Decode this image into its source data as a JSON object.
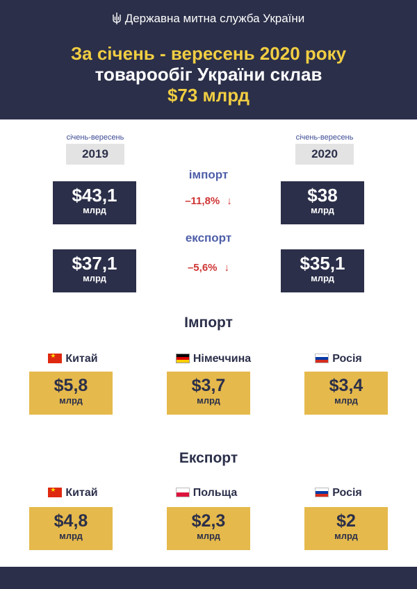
{
  "header": {
    "agency": "Державна митна служба України",
    "title_line1": "За січень - вересень 2020 року",
    "title_line2": "товарообіг України склав",
    "title_line3": "$73 млрд"
  },
  "comparison": {
    "left": {
      "period": "січень-вересень",
      "year": "2019"
    },
    "right": {
      "period": "січень-вересень",
      "year": "2020"
    },
    "rows": [
      {
        "label": "імпорт",
        "left_value": "$43,1",
        "left_unit": "млрд",
        "change": "–11,8%",
        "right_value": "$38",
        "right_unit": "млрд"
      },
      {
        "label": "експорт",
        "left_value": "$37,1",
        "left_unit": "млрд",
        "change": "–5,6%",
        "right_value": "$35,1",
        "right_unit": "млрд"
      }
    ]
  },
  "import_section": {
    "title": "Імпорт",
    "items": [
      {
        "country": "Китай",
        "flag": "cn",
        "value": "$5,8",
        "unit": "млрд"
      },
      {
        "country": "Німеччина",
        "flag": "de",
        "value": "$3,7",
        "unit": "млрд"
      },
      {
        "country": "Росія",
        "flag": "ru",
        "value": "$3,4",
        "unit": "млрд"
      }
    ]
  },
  "export_section": {
    "title": "Експорт",
    "items": [
      {
        "country": "Китай",
        "flag": "cn",
        "value": "$4,8",
        "unit": "млрд"
      },
      {
        "country": "Польща",
        "flag": "pl",
        "value": "$2,3",
        "unit": "млрд"
      },
      {
        "country": "Росія",
        "flag": "ru",
        "value": "$2",
        "unit": "млрд"
      }
    ]
  },
  "colors": {
    "navy": "#2b2f49",
    "gold": "#e5b94c",
    "yellow_text": "#f1ce42",
    "decline_red": "#cf3535",
    "label_blue": "#4e5ea8"
  },
  "icons": {
    "agency_logo": "trident-icon",
    "decline": "arrow-down-icon"
  }
}
